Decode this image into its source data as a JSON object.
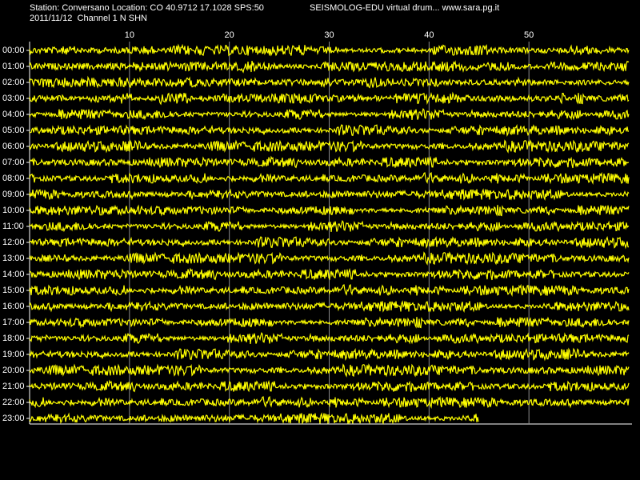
{
  "header": {
    "station": "Station: Conversano Location: CO 40.9712 17.1028 SPS:50",
    "source": "SEISMOLOG-EDU virtual drum... www.sara.pg.it",
    "date_channel": "2011/11/12  Channel 1 N SHN"
  },
  "chart_data": {
    "type": "drum",
    "color": "#ffff00",
    "grid": true,
    "categories": [
      "00:00",
      "01:00",
      "02:00",
      "03:00",
      "04:00",
      "05:00",
      "06:00",
      "07:00",
      "08:00",
      "09:00",
      "10:00",
      "11:00",
      "12:00",
      "13:00",
      "14:00",
      "15:00",
      "16:00",
      "17:00",
      "18:00",
      "19:00",
      "20:00",
      "21:00",
      "22:00",
      "23:00"
    ],
    "values": [
      60,
      60,
      60,
      60,
      60,
      60,
      60,
      60,
      60,
      60,
      60,
      60,
      60,
      60,
      60,
      60,
      60,
      60,
      60,
      60,
      60,
      60,
      60,
      45
    ],
    "xlim": [
      0,
      60
    ],
    "xticks": [
      10,
      20,
      30,
      40,
      50
    ]
  }
}
